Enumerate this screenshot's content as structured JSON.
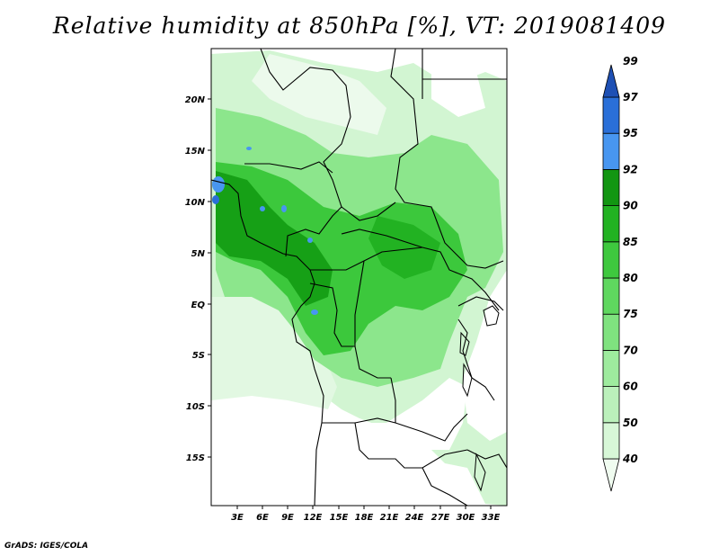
{
  "title": "Relative humidity at 850hPa [%], VT: 2019081409",
  "footer": "GrADS: IGES/COLA",
  "lat_ticks": [
    "20N",
    "15N",
    "10N",
    "5N",
    "EQ",
    "5S",
    "10S",
    "15S"
  ],
  "lon_ticks": [
    "3E",
    "6E",
    "9E",
    "12E",
    "15E",
    "18E",
    "21E",
    "24E",
    "27E",
    "30E",
    "33E"
  ],
  "colorbar": {
    "levels": [
      "40",
      "50",
      "60",
      "70",
      "75",
      "80",
      "85",
      "90",
      "92",
      "95",
      "97",
      "99"
    ],
    "colors": [
      "#f0fcf0",
      "#d7f7d7",
      "#bbf0bb",
      "#9eeb9e",
      "#7fe27f",
      "#5fd75f",
      "#3ec83e",
      "#22b222",
      "#129612",
      "#4896f0",
      "#2a6fd8",
      "#1e50b4"
    ]
  },
  "map_colors": {
    "light": "#d2f5d2",
    "medium": "#8ce68c",
    "dark": "#3cc83c",
    "deep": "#16a016",
    "saturated": "#4896f0"
  }
}
